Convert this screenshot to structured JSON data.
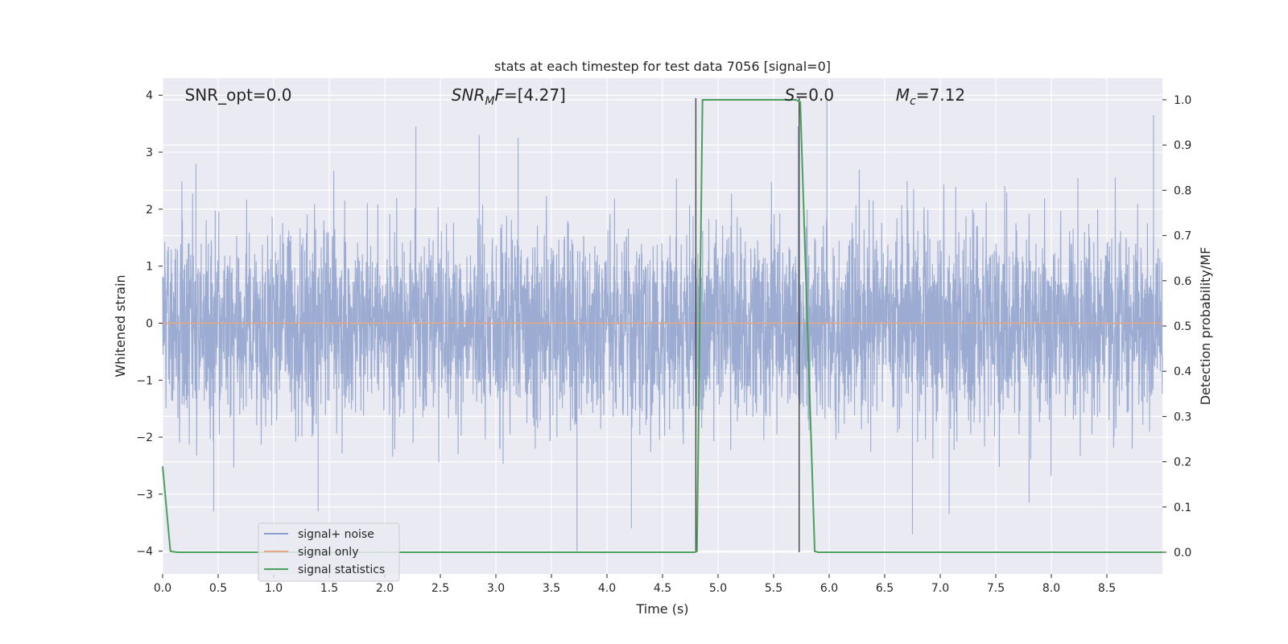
{
  "chart_data": {
    "type": "line",
    "title": "stats at each timestep for test data 7056 [signal=0]",
    "xlabel": "Time (s)",
    "ylabel": "Whitened strain",
    "y2label": "Detection probability/MF",
    "xlim": [
      0,
      9.0
    ],
    "ylim": [
      -4.4,
      4.3
    ],
    "y2lim": [
      -0.048,
      1.048
    ],
    "x_ticks": [
      0.0,
      0.5,
      1.0,
      1.5,
      2.0,
      2.5,
      3.0,
      3.5,
      4.0,
      4.5,
      5.0,
      5.5,
      6.0,
      6.5,
      7.0,
      7.5,
      8.0,
      8.5
    ],
    "y_ticks": [
      4,
      3,
      2,
      1,
      0,
      -1,
      -2,
      -3,
      -4
    ],
    "y2_ticks": [
      1.0,
      0.9,
      0.8,
      0.7,
      0.6,
      0.5,
      0.4,
      0.3,
      0.2,
      0.1,
      0.0
    ],
    "grid": true,
    "legend_position": "lower-left",
    "annotations": [
      {
        "key": "snr_opt",
        "text": "SNR_opt=0.0",
        "x": 0.2,
        "y": 4.0
      },
      {
        "key": "snr_mf",
        "base": "SNR",
        "sub": "M",
        "rest": "F=[4.27]",
        "x": 2.6,
        "y": 4.0
      },
      {
        "key": "s",
        "base": "S",
        "rest": "=0.0",
        "x": 5.6,
        "y": 4.0
      },
      {
        "key": "mc",
        "base": "M",
        "sub": "c",
        "rest": "=7.12",
        "x": 6.6,
        "y": 4.0
      }
    ],
    "vlines": [
      4.8,
      5.73
    ],
    "series": [
      {
        "name": "signal+ noise",
        "color": "#8da0cb",
        "kind": "noise",
        "duration": 9.0,
        "typical_amplitude": 1.5,
        "spike_peaks": [
          {
            "x": 0.3,
            "y": 2.8
          },
          {
            "x": 0.46,
            "y": -3.3
          },
          {
            "x": 1.4,
            "y": -3.3
          },
          {
            "x": 2.28,
            "y": 3.45
          },
          {
            "x": 2.85,
            "y": 3.3
          },
          {
            "x": 3.2,
            "y": 3.25
          },
          {
            "x": 3.73,
            "y": -4.0
          },
          {
            "x": 4.22,
            "y": -3.6
          },
          {
            "x": 5.72,
            "y": 3.45
          },
          {
            "x": 5.98,
            "y": 3.9
          },
          {
            "x": 6.75,
            "y": -3.7
          },
          {
            "x": 7.08,
            "y": -3.35
          },
          {
            "x": 7.8,
            "y": -3.15
          },
          {
            "x": 8.92,
            "y": 3.65
          }
        ]
      },
      {
        "name": "signal only",
        "color": "#e5a785",
        "x": [
          0,
          9.0
        ],
        "y": [
          0,
          0
        ]
      },
      {
        "name": "signal statistics",
        "color": "#4a9f5b",
        "axis": "right",
        "x": [
          0.0,
          0.07,
          0.13,
          4.79,
          4.81,
          4.86,
          5.0,
          5.7,
          5.74,
          5.87,
          5.9,
          9.0
        ],
        "y": [
          0.19,
          0.002,
          0.0,
          0.0,
          0.002,
          1.0,
          1.0,
          1.0,
          0.995,
          0.002,
          0.0,
          0.0
        ]
      }
    ]
  }
}
